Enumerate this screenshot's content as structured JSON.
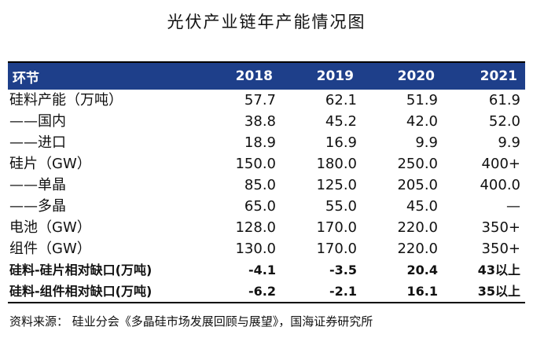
{
  "header": {
    "title": "光伏产业链年产能情况图"
  },
  "table": {
    "columns": [
      "环节",
      "2018",
      "2019",
      "2020",
      "2021"
    ],
    "rows": [
      [
        "硅料产能（万吨）",
        "57.7",
        "62.1",
        "51.9",
        "61.9"
      ],
      [
        "——国内",
        "38.8",
        "45.2",
        "42.0",
        "52.0"
      ],
      [
        "——进口",
        "18.9",
        "16.9",
        "9.9",
        "9.9"
      ],
      [
        "硅片（GW）",
        "150.0",
        "180.0",
        "250.0",
        "400+"
      ],
      [
        "——单晶",
        "85.0",
        "125.0",
        "205.0",
        "400.0"
      ],
      [
        "——多晶",
        "65.0",
        "55.0",
        "45.0",
        "—"
      ],
      [
        "电池（GW）",
        "128.0",
        "170.0",
        "220.0",
        "350+"
      ],
      [
        "组件（GW）",
        "130.0",
        "170.0",
        "220.0",
        "350+"
      ],
      [
        "硅料-硅片相对缺口(万吨)",
        "-4.1",
        "-3.5",
        "20.4",
        "43以上"
      ],
      [
        "硅料-组件相对缺口(万吨)",
        "-6.2",
        "-2.1",
        "16.1",
        "35以上"
      ]
    ],
    "bold_rows": [
      8,
      9
    ]
  },
  "footer": {
    "source": "资料来源： 硅业分会《多晶硅市场发展回顾与展望》，国海证券研究所"
  }
}
